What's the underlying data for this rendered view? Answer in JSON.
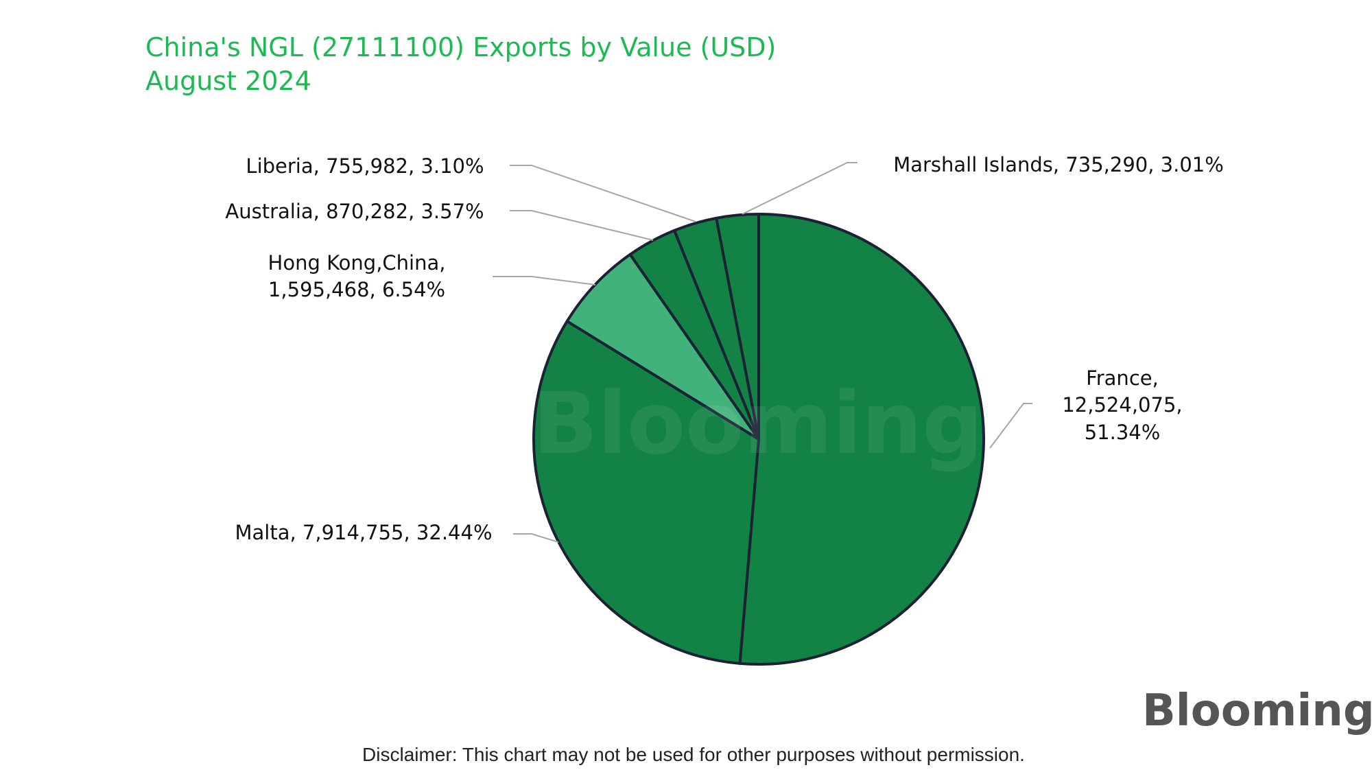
{
  "chart_data": {
    "type": "pie",
    "title": "China's NGL (27111100) Exports by Value (USD)",
    "subtitle": "August 2024",
    "slices": [
      {
        "name": "France",
        "value": 12524075,
        "percent": 51.34,
        "label_lines": [
          "France,",
          "12,524,075,",
          "51.34%"
        ],
        "color": "#128345"
      },
      {
        "name": "Malta",
        "value": 7914755,
        "percent": 32.44,
        "label_lines": [
          "Malta, 7,914,755, 32.44%"
        ],
        "color": "#128345"
      },
      {
        "name": "Hong Kong,China",
        "value": 1595468,
        "percent": 6.54,
        "label_lines": [
          "Hong Kong,China,",
          "1,595,468, 6.54%"
        ],
        "color": "#40b27a"
      },
      {
        "name": "Australia",
        "value": 870282,
        "percent": 3.57,
        "label_lines": [
          "Australia, 870,282, 3.57%"
        ],
        "color": "#128345"
      },
      {
        "name": "Liberia",
        "value": 755982,
        "percent": 3.1,
        "label_lines": [
          "Liberia, 755,982, 3.10%"
        ],
        "color": "#128345"
      },
      {
        "name": "Marshall Islands",
        "value": 735290,
        "percent": 3.01,
        "label_lines": [
          "Marshall Islands, 735,290, 3.01%"
        ],
        "color": "#128345"
      }
    ],
    "start_angle": "12 o'clock",
    "direction": "clockwise",
    "legend": "none"
  },
  "colors": {
    "title": "#1db954",
    "slice_outline": "#1b2236",
    "leader": "#a6a6a6",
    "brand_ink": "#555555",
    "brand_eye": "#39d353"
  },
  "watermark": "Blooming",
  "brand_logo": "Blooming",
  "disclaimer": "Disclaimer: This chart may not be used for other purposes without permission."
}
